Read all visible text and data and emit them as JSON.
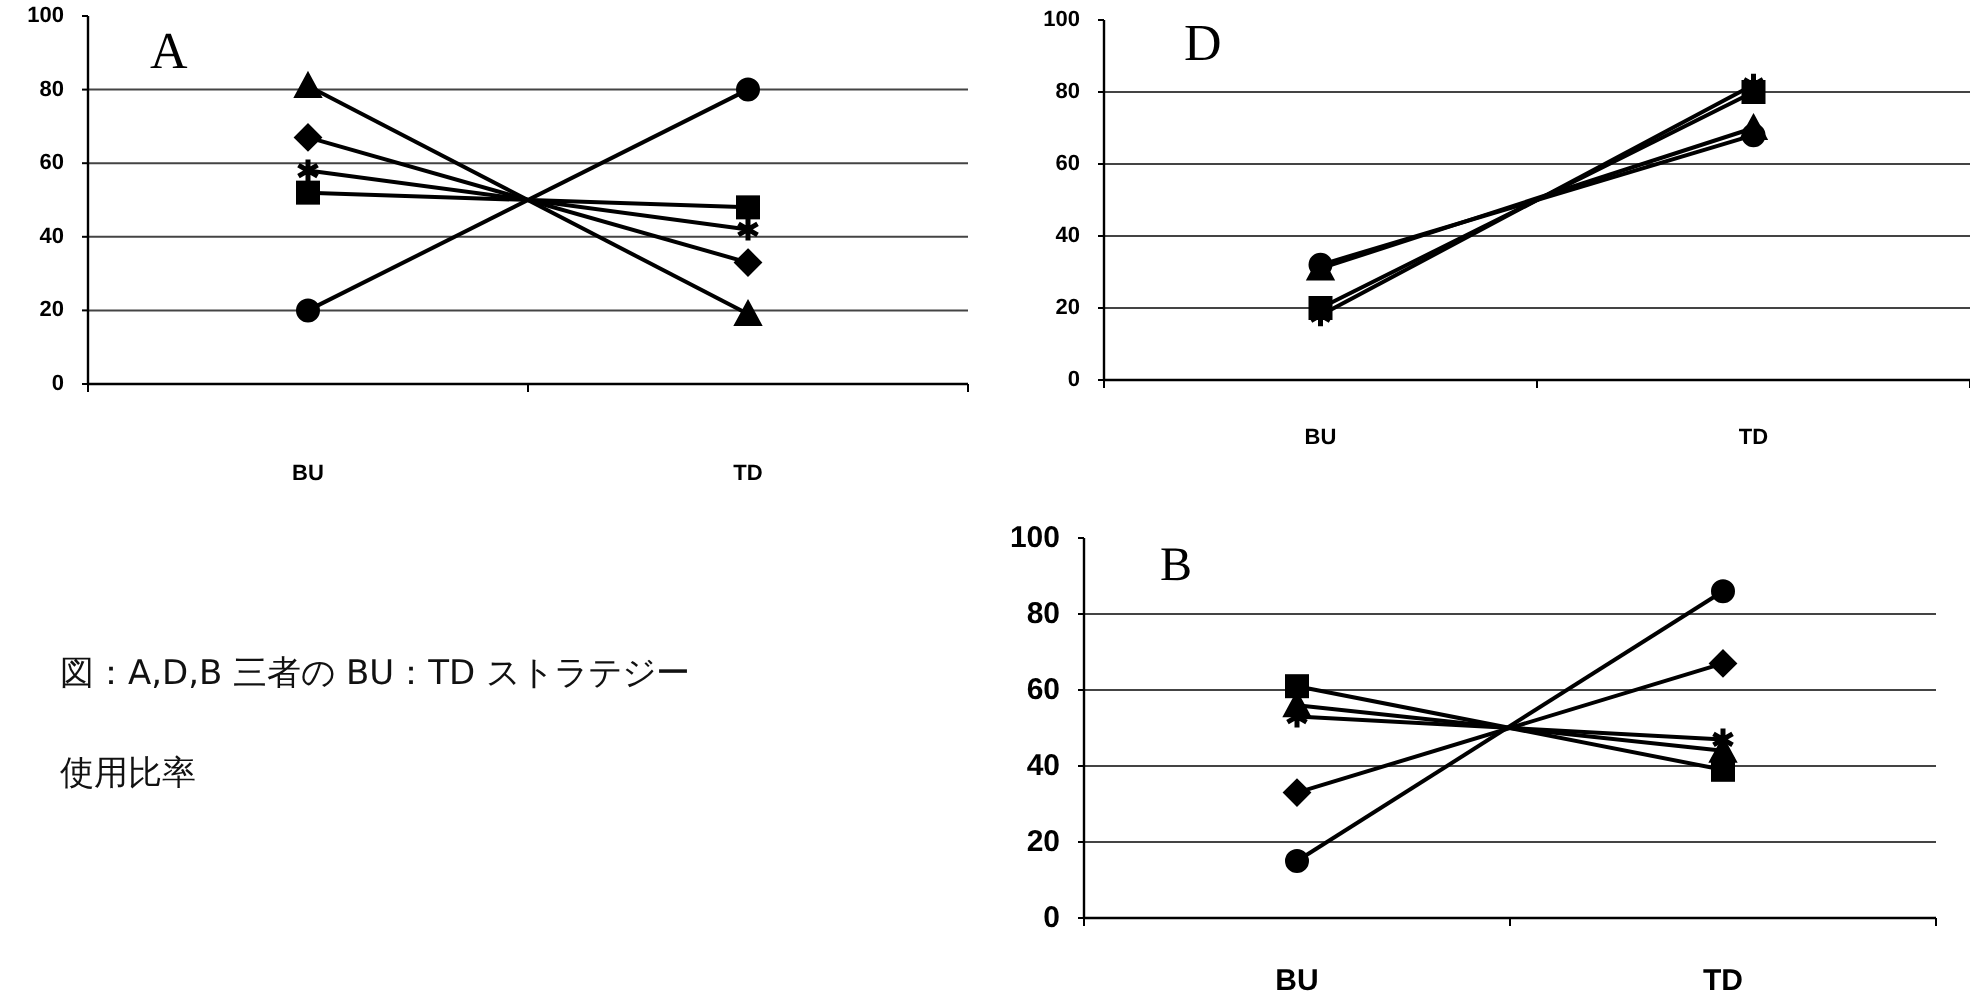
{
  "chart_data": [
    {
      "type": "line",
      "title": "A",
      "categories": [
        "BU",
        "TD"
      ],
      "ylim": [
        0,
        100
      ],
      "yticks": [
        0,
        20,
        40,
        60,
        80,
        100
      ],
      "grid": "y",
      "series": [
        {
          "color": "#000000",
          "marker": "triangle",
          "values": [
            81,
            19
          ]
        },
        {
          "color": "#000000",
          "marker": "diamond",
          "values": [
            67,
            33
          ]
        },
        {
          "color": "#000000",
          "marker": "cross",
          "values": [
            58,
            42
          ]
        },
        {
          "color": "#000000",
          "marker": "square",
          "values": [
            52,
            48
          ]
        },
        {
          "color": "#000000",
          "marker": "circle",
          "values": [
            20,
            80
          ]
        }
      ]
    },
    {
      "type": "line",
      "title": "D",
      "categories": [
        "BU",
        "TD"
      ],
      "ylim": [
        0,
        100
      ],
      "yticks": [
        0,
        20,
        40,
        60,
        80,
        100
      ],
      "grid": "y",
      "series": [
        {
          "color": "#000000",
          "marker": "circle",
          "values": [
            32,
            68
          ]
        },
        {
          "color": "#000000",
          "marker": "triangle",
          "values": [
            31,
            70
          ]
        },
        {
          "color": "#000000",
          "marker": "square",
          "values": [
            20,
            80
          ]
        },
        {
          "color": "#000000",
          "marker": "cross",
          "values": [
            18,
            82
          ]
        }
      ]
    },
    {
      "type": "line",
      "title": "B",
      "categories": [
        "BU",
        "TD"
      ],
      "ylim": [
        0,
        100
      ],
      "yticks": [
        0,
        20,
        40,
        60,
        80,
        100
      ],
      "grid": "y",
      "series": [
        {
          "color": "#000000",
          "marker": "circle",
          "values": [
            15,
            86
          ]
        },
        {
          "color": "#000000",
          "marker": "diamond",
          "values": [
            33,
            67
          ]
        },
        {
          "color": "#000000",
          "marker": "square",
          "values": [
            61,
            39
          ]
        },
        {
          "color": "#000000",
          "marker": "triangle",
          "values": [
            56,
            44
          ]
        },
        {
          "color": "#000000",
          "marker": "cross",
          "values": [
            53,
            47
          ]
        }
      ]
    },
    {
      "type": "other",
      "title": "図：A,D,B 三者の BU：TD ストラテジー使用比率"
    }
  ]
}
